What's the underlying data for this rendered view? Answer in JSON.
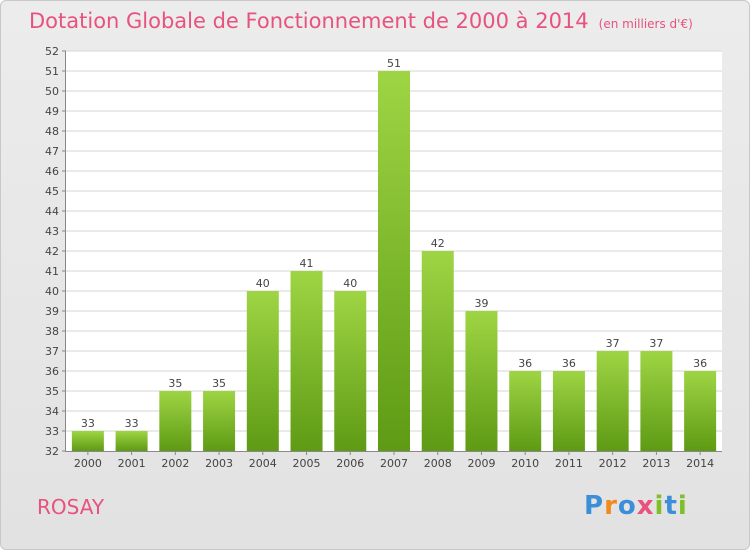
{
  "title": "Dotation Globale de Fonctionnement de 2000 à 2014",
  "unit": "(en milliers d'€)",
  "commune": "ROSAY",
  "logo": {
    "text": "Proxiti",
    "letter_colors": [
      "#3a8fd8",
      "#f08a1c",
      "#3a8fd8",
      "#e8527f",
      "#7fbf2a",
      "#3a8fd8",
      "#7fbf2a"
    ]
  },
  "colors": {
    "bar_top": "#9ed544",
    "bar_bottom": "#5e9a14",
    "grid": "#d6d6d6",
    "title": "#e8527f"
  },
  "chart_data": {
    "type": "bar",
    "categories": [
      "2000",
      "2001",
      "2002",
      "2003",
      "2004",
      "2005",
      "2006",
      "2007",
      "2008",
      "2009",
      "2010",
      "2011",
      "2012",
      "2013",
      "2014"
    ],
    "values": [
      33,
      33,
      35,
      35,
      40,
      41,
      40,
      51,
      42,
      39,
      36,
      36,
      37,
      37,
      36
    ],
    "title": "Dotation Globale de Fonctionnement de 2000 à 2014",
    "subtitle": "(en milliers d'€)",
    "xlabel": "",
    "ylabel": "",
    "ylim": [
      32,
      52
    ],
    "yticks": [
      32,
      33,
      34,
      35,
      36,
      37,
      38,
      39,
      40,
      41,
      42,
      43,
      44,
      45,
      46,
      47,
      48,
      49,
      50,
      51,
      52
    ],
    "grid": true,
    "legend": "none",
    "data_labels": true
  }
}
